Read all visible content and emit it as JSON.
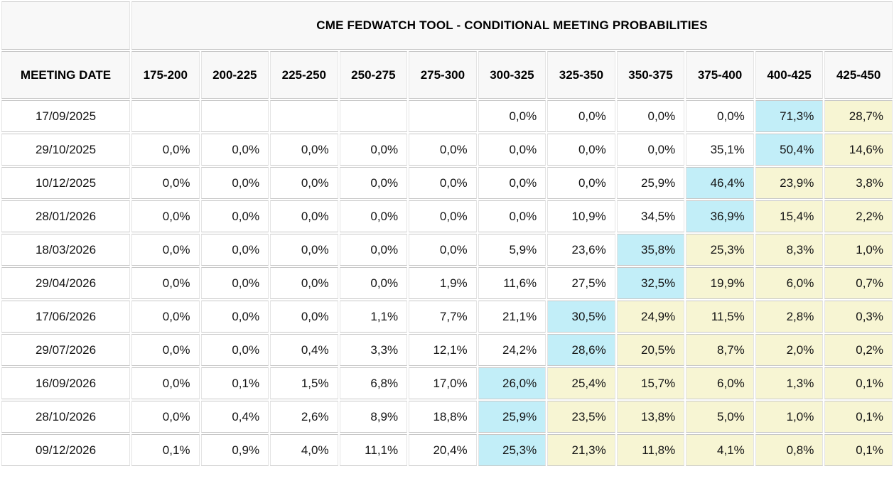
{
  "title": "CME FEDWATCH TOOL - CONDITIONAL MEETING PROBABILITIES",
  "colors": {
    "highlight_cyan": "#c2eef8",
    "highlight_yellow": "#f7f5d3",
    "header_bg": "#f8f8f8",
    "grid_horizontal": "#c7c7c7",
    "grid_vertical": "#e4e4e4"
  },
  "chart_data": {
    "type": "table",
    "title": "CME FEDWATCH TOOL - CONDITIONAL MEETING PROBABILITIES",
    "row_header": "MEETING DATE",
    "columns": [
      "175-200",
      "200-225",
      "225-250",
      "250-275",
      "275-300",
      "300-325",
      "325-350",
      "350-375",
      "375-400",
      "400-425",
      "425-450"
    ],
    "rows": [
      {
        "date": "17/09/2025",
        "values": [
          "",
          "",
          "",
          "",
          "",
          "0,0%",
          "0,0%",
          "0,0%",
          "0,0%",
          "71,3%",
          "28,7%"
        ],
        "highlights": [
          "",
          "",
          "",
          "",
          "",
          "",
          "",
          "",
          "",
          "cyan",
          "yellow"
        ]
      },
      {
        "date": "29/10/2025",
        "values": [
          "0,0%",
          "0,0%",
          "0,0%",
          "0,0%",
          "0,0%",
          "0,0%",
          "0,0%",
          "0,0%",
          "35,1%",
          "50,4%",
          "14,6%"
        ],
        "highlights": [
          "",
          "",
          "",
          "",
          "",
          "",
          "",
          "",
          "",
          "cyan",
          "yellow"
        ]
      },
      {
        "date": "10/12/2025",
        "values": [
          "0,0%",
          "0,0%",
          "0,0%",
          "0,0%",
          "0,0%",
          "0,0%",
          "0,0%",
          "25,9%",
          "46,4%",
          "23,9%",
          "3,8%"
        ],
        "highlights": [
          "",
          "",
          "",
          "",
          "",
          "",
          "",
          "",
          "cyan",
          "yellow",
          "yellow"
        ]
      },
      {
        "date": "28/01/2026",
        "values": [
          "0,0%",
          "0,0%",
          "0,0%",
          "0,0%",
          "0,0%",
          "0,0%",
          "10,9%",
          "34,5%",
          "36,9%",
          "15,4%",
          "2,2%"
        ],
        "highlights": [
          "",
          "",
          "",
          "",
          "",
          "",
          "",
          "",
          "cyan",
          "yellow",
          "yellow"
        ]
      },
      {
        "date": "18/03/2026",
        "values": [
          "0,0%",
          "0,0%",
          "0,0%",
          "0,0%",
          "0,0%",
          "5,9%",
          "23,6%",
          "35,8%",
          "25,3%",
          "8,3%",
          "1,0%"
        ],
        "highlights": [
          "",
          "",
          "",
          "",
          "",
          "",
          "",
          "cyan",
          "yellow",
          "yellow",
          "yellow"
        ]
      },
      {
        "date": "29/04/2026",
        "values": [
          "0,0%",
          "0,0%",
          "0,0%",
          "0,0%",
          "1,9%",
          "11,6%",
          "27,5%",
          "32,5%",
          "19,9%",
          "6,0%",
          "0,7%"
        ],
        "highlights": [
          "",
          "",
          "",
          "",
          "",
          "",
          "",
          "cyan",
          "yellow",
          "yellow",
          "yellow"
        ]
      },
      {
        "date": "17/06/2026",
        "values": [
          "0,0%",
          "0,0%",
          "0,0%",
          "1,1%",
          "7,7%",
          "21,1%",
          "30,5%",
          "24,9%",
          "11,5%",
          "2,8%",
          "0,3%"
        ],
        "highlights": [
          "",
          "",
          "",
          "",
          "",
          "",
          "cyan",
          "yellow",
          "yellow",
          "yellow",
          "yellow"
        ]
      },
      {
        "date": "29/07/2026",
        "values": [
          "0,0%",
          "0,0%",
          "0,4%",
          "3,3%",
          "12,1%",
          "24,2%",
          "28,6%",
          "20,5%",
          "8,7%",
          "2,0%",
          "0,2%"
        ],
        "highlights": [
          "",
          "",
          "",
          "",
          "",
          "",
          "cyan",
          "yellow",
          "yellow",
          "yellow",
          "yellow"
        ]
      },
      {
        "date": "16/09/2026",
        "values": [
          "0,0%",
          "0,1%",
          "1,5%",
          "6,8%",
          "17,0%",
          "26,0%",
          "25,4%",
          "15,7%",
          "6,0%",
          "1,3%",
          "0,1%"
        ],
        "highlights": [
          "",
          "",
          "",
          "",
          "",
          "cyan",
          "yellow",
          "yellow",
          "yellow",
          "yellow",
          "yellow"
        ]
      },
      {
        "date": "28/10/2026",
        "values": [
          "0,0%",
          "0,4%",
          "2,6%",
          "8,9%",
          "18,8%",
          "25,9%",
          "23,5%",
          "13,8%",
          "5,0%",
          "1,0%",
          "0,1%"
        ],
        "highlights": [
          "",
          "",
          "",
          "",
          "",
          "cyan",
          "yellow",
          "yellow",
          "yellow",
          "yellow",
          "yellow"
        ]
      },
      {
        "date": "09/12/2026",
        "values": [
          "0,1%",
          "0,9%",
          "4,0%",
          "11,1%",
          "20,4%",
          "25,3%",
          "21,3%",
          "11,8%",
          "4,1%",
          "0,8%",
          "0,1%"
        ],
        "highlights": [
          "",
          "",
          "",
          "",
          "",
          "cyan",
          "yellow",
          "yellow",
          "yellow",
          "yellow",
          "yellow"
        ]
      }
    ]
  }
}
